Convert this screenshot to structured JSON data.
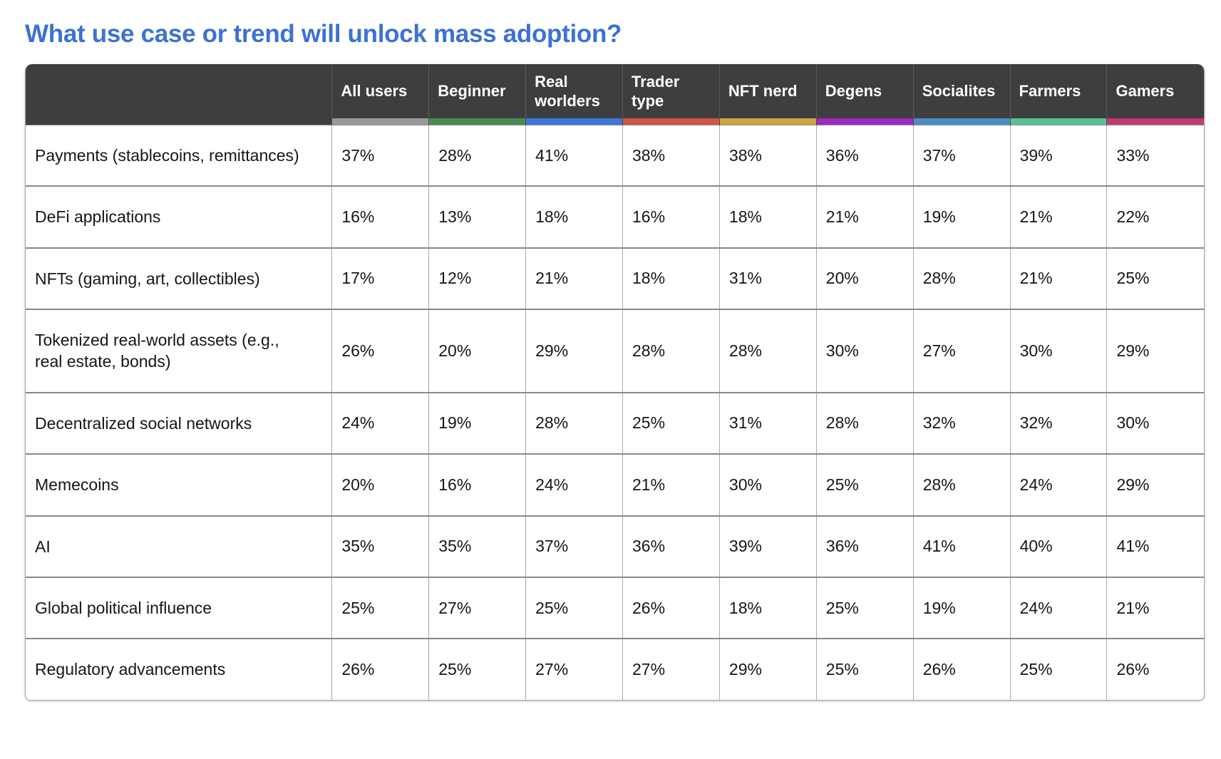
{
  "page": {
    "title": "What use case or trend will unlock mass adoption?",
    "title_color": "#3b72d4"
  },
  "table": {
    "header_bg": "#3e3e3e",
    "columns": [
      {
        "label": "All users",
        "accent": "#999999"
      },
      {
        "label": "Beginner",
        "accent": "#478c51"
      },
      {
        "label": "Real worlders",
        "accent": "#3c77d9"
      },
      {
        "label": "Trader type",
        "accent": "#cf5445"
      },
      {
        "label": "NFT nerd",
        "accent": "#d0a43e"
      },
      {
        "label": "Degens",
        "accent": "#9c2bbd"
      },
      {
        "label": "Socialites",
        "accent": "#4b8ec4"
      },
      {
        "label": "Farmers",
        "accent": "#57c193"
      },
      {
        "label": "Gamers",
        "accent": "#c23a72"
      }
    ],
    "rows": [
      {
        "label": "Payments (stablecoins, remittances)",
        "values": [
          "37%",
          "28%",
          "41%",
          "38%",
          "38%",
          "36%",
          "37%",
          "39%",
          "33%"
        ]
      },
      {
        "label": "DeFi applications",
        "values": [
          "16%",
          "13%",
          "18%",
          "16%",
          "18%",
          "21%",
          "19%",
          "21%",
          "22%"
        ]
      },
      {
        "label": "NFTs (gaming, art, collectibles)",
        "values": [
          "17%",
          "12%",
          "21%",
          "18%",
          "31%",
          "20%",
          "28%",
          "21%",
          "25%"
        ]
      },
      {
        "label": "Tokenized real-world assets (e.g., real estate, bonds)",
        "values": [
          "26%",
          "20%",
          "29%",
          "28%",
          "28%",
          "30%",
          "27%",
          "30%",
          "29%"
        ]
      },
      {
        "label": "Decentralized social networks",
        "values": [
          "24%",
          "19%",
          "28%",
          "25%",
          "31%",
          "28%",
          "32%",
          "32%",
          "30%"
        ]
      },
      {
        "label": "Memecoins",
        "values": [
          "20%",
          "16%",
          "24%",
          "21%",
          "30%",
          "25%",
          "28%",
          "24%",
          "29%"
        ]
      },
      {
        "label": "AI",
        "values": [
          "35%",
          "35%",
          "37%",
          "36%",
          "39%",
          "36%",
          "41%",
          "40%",
          "41%"
        ]
      },
      {
        "label": "Global political influence",
        "values": [
          "25%",
          "27%",
          "25%",
          "26%",
          "18%",
          "25%",
          "19%",
          "24%",
          "21%"
        ]
      },
      {
        "label": "Regulatory advancements",
        "values": [
          "26%",
          "25%",
          "27%",
          "27%",
          "29%",
          "25%",
          "26%",
          "25%",
          "26%"
        ]
      }
    ]
  },
  "chart_data": {
    "type": "table",
    "title": "What use case or trend will unlock mass adoption?",
    "categories": [
      "Payments (stablecoins, remittances)",
      "DeFi applications",
      "NFTs (gaming, art, collectibles)",
      "Tokenized real-world assets (e.g., real estate, bonds)",
      "Decentralized social networks",
      "Memecoins",
      "AI",
      "Global political influence",
      "Regulatory advancements"
    ],
    "series": [
      {
        "name": "All users",
        "values": [
          37,
          16,
          17,
          26,
          24,
          20,
          35,
          25,
          26
        ]
      },
      {
        "name": "Beginner",
        "values": [
          28,
          13,
          12,
          20,
          19,
          16,
          35,
          27,
          25
        ]
      },
      {
        "name": "Real worlders",
        "values": [
          41,
          18,
          21,
          29,
          28,
          24,
          37,
          25,
          27
        ]
      },
      {
        "name": "Trader type",
        "values": [
          38,
          16,
          18,
          28,
          25,
          21,
          36,
          26,
          27
        ]
      },
      {
        "name": "NFT nerd",
        "values": [
          38,
          18,
          31,
          28,
          31,
          30,
          39,
          18,
          29
        ]
      },
      {
        "name": "Degens",
        "values": [
          36,
          21,
          20,
          30,
          28,
          25,
          36,
          25,
          25
        ]
      },
      {
        "name": "Socialites",
        "values": [
          37,
          19,
          28,
          27,
          32,
          28,
          41,
          19,
          26
        ]
      },
      {
        "name": "Farmers",
        "values": [
          39,
          21,
          21,
          30,
          32,
          24,
          40,
          24,
          25
        ]
      },
      {
        "name": "Gamers",
        "values": [
          33,
          22,
          25,
          29,
          30,
          29,
          41,
          21,
          26
        ]
      }
    ],
    "unit": "%"
  }
}
